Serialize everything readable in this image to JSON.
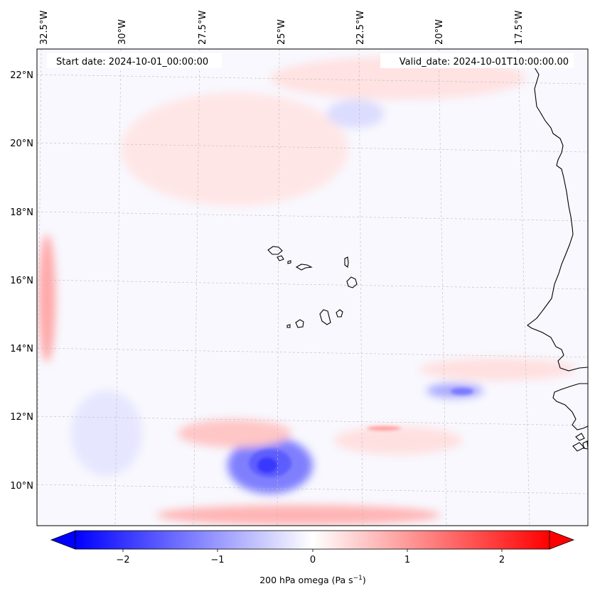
{
  "map": {
    "start_date": "Start date: 2024-10-01_00:00:00",
    "valid_date": "Valid_date: 2024-10-01T10:00:00.00",
    "lon_labels": [
      "32.5°W",
      "30°W",
      "27.5°W",
      "25°W",
      "22.5°W",
      "20°W",
      "17.5°W"
    ],
    "lat_labels": [
      "22°N",
      "20°N",
      "18°N",
      "16°N",
      "14°N",
      "12°N",
      "10°N"
    ],
    "field": "200 hPa omega",
    "features": [
      "coastline-west-africa",
      "cape-verde-islands"
    ],
    "gridlines": true
  },
  "colorbar": {
    "label_main": "200 hPa omega (Pa s",
    "label_exp": "−1",
    "label_close": ")",
    "ticks": [
      "−2",
      "−1",
      "0",
      "1",
      "2"
    ],
    "range": [
      -2.5,
      2.5
    ],
    "extend": "both",
    "colormap": "bwr",
    "colors": {
      "negative": "#0000ff",
      "zero": "#ffffff",
      "positive": "#ff0000"
    }
  }
}
